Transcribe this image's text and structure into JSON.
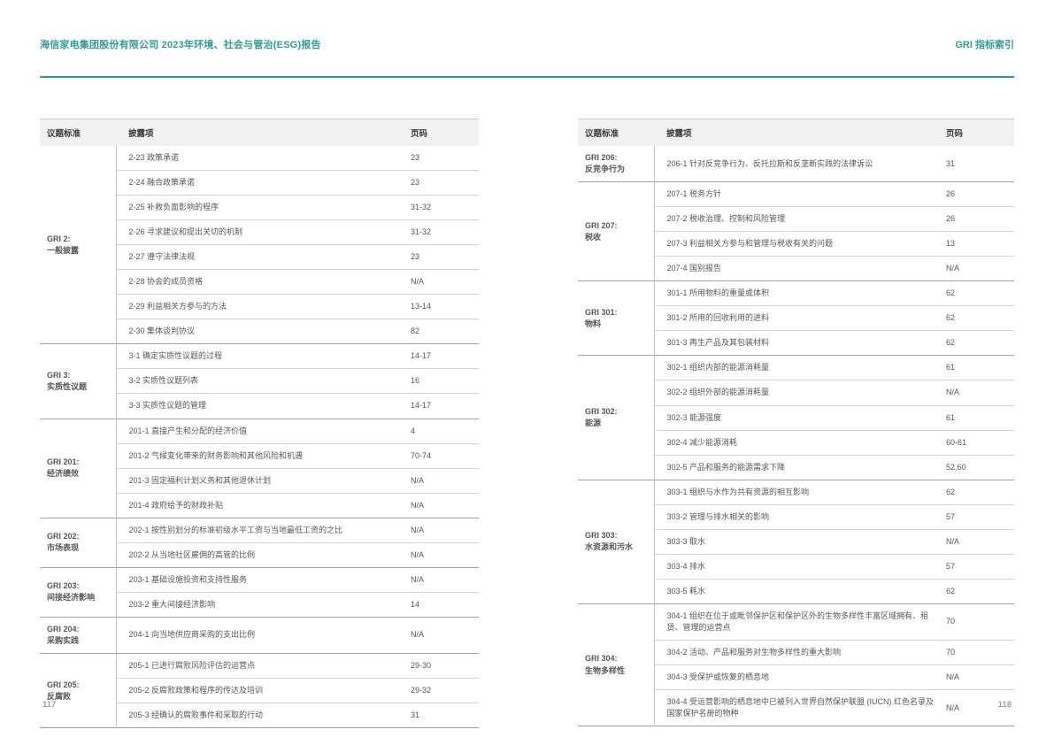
{
  "header": {
    "left_title": "海信家电集团股份有限公司 2023年环境、社会与管治(ESG)报告",
    "right_title": "GRI 指标索引"
  },
  "table_headers": {
    "topic": "议题标准",
    "disclosure": "披露项",
    "page": "页码"
  },
  "footer": {
    "left_page": "117",
    "right_page": "118"
  },
  "colors": {
    "accent_teal": "#2e9d95",
    "table_header_bg": "#f1f1f1",
    "body_text_gray": "#595757"
  },
  "tables": {
    "left": {
      "groups": [
        {
          "topic_lines": [
            "GRI 2:",
            "一般披露"
          ],
          "rows": [
            {
              "disclosure": "2-23 政策承诺",
              "page": "23"
            },
            {
              "disclosure": "2-24 融合政策承诺",
              "page": "23"
            },
            {
              "disclosure": "2-25 补救负面影响的程序",
              "page": "31-32"
            },
            {
              "disclosure": "2-26 寻求建议和提出关切的机制",
              "page": "31-32"
            },
            {
              "disclosure": "2-27 遵守法律法规",
              "page": "23"
            },
            {
              "disclosure": "2-28 协会的成员资格",
              "page": "N/A"
            },
            {
              "disclosure": "2-29 利益相关方参与的方法",
              "page": "13-14"
            },
            {
              "disclosure": "2-30 集体谈判协议",
              "page": "82"
            }
          ]
        },
        {
          "topic_lines": [
            "GRI 3:",
            "实质性议题"
          ],
          "rows": [
            {
              "disclosure": "3-1 确定实质性议题的过程",
              "page": "14-17"
            },
            {
              "disclosure": "3-2 实质性议题列表",
              "page": "16"
            },
            {
              "disclosure": "3-3 实质性议题的管理",
              "page": "14-17"
            }
          ]
        },
        {
          "topic_lines": [
            "GRI 201:",
            "经济绩效"
          ],
          "rows": [
            {
              "disclosure": "201-1 直接产生和分配的经济价值",
              "page": "4"
            },
            {
              "disclosure": "201-2 气候变化带来的财务影响和其他风险和机遇",
              "page": "70-74"
            },
            {
              "disclosure": "201-3 固定福利计划义务和其他退休计划",
              "page": "N/A"
            },
            {
              "disclosure": "201-4 政府给予的财政补贴",
              "page": "N/A"
            }
          ]
        },
        {
          "topic_lines": [
            "GRI 202:",
            "市场表现"
          ],
          "rows": [
            {
              "disclosure": "202-1 按性别划分的标准初级水平工资与当地最低工资的之比",
              "page": "N/A"
            },
            {
              "disclosure": "202-2 从当地社区雇佣的高管的比例",
              "page": "N/A"
            }
          ]
        },
        {
          "topic_lines": [
            "GRI 203:",
            "间接经济影响"
          ],
          "rows": [
            {
              "disclosure": "203-1 基础设施投资和支持性服务",
              "page": "N/A"
            },
            {
              "disclosure": "203-2 重大间接经济影响",
              "page": "14"
            }
          ]
        },
        {
          "topic_lines": [
            "GRI 204:",
            "采购实践"
          ],
          "rows": [
            {
              "disclosure": "204-1 向当地供应商采购的支出比例",
              "page": "N/A"
            }
          ]
        },
        {
          "topic_lines": [
            "GRI 205:",
            "反腐败"
          ],
          "rows": [
            {
              "disclosure": "205-1 已进行腐败风险评估的运营点",
              "page": "29-30"
            },
            {
              "disclosure": "205-2 反腐败政策和程序的传达及培训",
              "page": "29-32"
            },
            {
              "disclosure": "205-3 经确认的腐败事件和采取的行动",
              "page": "31"
            }
          ]
        }
      ]
    },
    "right": {
      "groups": [
        {
          "topic_lines": [
            "GRI 206:",
            "反竞争行为"
          ],
          "rows": [
            {
              "disclosure": "206-1 针对反竞争行为、反托拉斯和反垄断实践的法律诉讼",
              "page": "31"
            }
          ]
        },
        {
          "topic_lines": [
            "GRI 207:",
            "税收"
          ],
          "rows": [
            {
              "disclosure": "207-1 税务方针",
              "page": "26"
            },
            {
              "disclosure": "207-2 税收治理、控制和风险管理",
              "page": "26"
            },
            {
              "disclosure": "207-3 利益相关方参与和管理与税收有关的问题",
              "page": "13"
            },
            {
              "disclosure": "207-4 国别报告",
              "page": "N/A"
            }
          ]
        },
        {
          "topic_lines": [
            "GRI 301:",
            "物料"
          ],
          "rows": [
            {
              "disclosure": "301-1 所用物料的重量或体积",
              "page": "62"
            },
            {
              "disclosure": "301-2 所用的回收利用的进料",
              "page": "62"
            },
            {
              "disclosure": "301-3 再生产品及其包装材料",
              "page": "62"
            }
          ]
        },
        {
          "topic_lines": [
            "GRI 302:",
            "能源"
          ],
          "rows": [
            {
              "disclosure": "302-1 组织内部的能源消耗量",
              "page": "61"
            },
            {
              "disclosure": "302-2 组织外部的能源消耗量",
              "page": "N/A"
            },
            {
              "disclosure": "302-3 能源强度",
              "page": "61"
            },
            {
              "disclosure": "302-4 减少能源消耗",
              "page": "60-61"
            },
            {
              "disclosure": "302-5 产品和服务的能源需求下降",
              "page": "52,60"
            }
          ]
        },
        {
          "topic_lines": [
            "GRI 303:",
            "水资源和污水"
          ],
          "rows": [
            {
              "disclosure": "303-1 组织与水作为共有资源的相互影响",
              "page": "62"
            },
            {
              "disclosure": "303-2 管理与排水相关的影响",
              "page": "57"
            },
            {
              "disclosure": "303-3 取水",
              "page": "N/A"
            },
            {
              "disclosure": "303-4 排水",
              "page": "57"
            },
            {
              "disclosure": "303-5 耗水",
              "page": "62"
            }
          ]
        },
        {
          "topic_lines": [
            "GRI 304:",
            "生物多样性"
          ],
          "rows": [
            {
              "disclosure": "304-1 组织在位于或毗邻保护区和保护区外的生物多样性丰富区域拥有、租赁、管理的运营点",
              "page": "70"
            },
            {
              "disclosure": "304-2 活动、产品和服务对生物多样性的重大影响",
              "page": "70"
            },
            {
              "disclosure": "304-3 受保护或恢复的栖息地",
              "page": "N/A"
            },
            {
              "disclosure": "304-4 受运营影响的栖息地中已被列入世界自然保护联盟 (IUCN) 红色名录及国家保护名册的物种",
              "page": "N/A"
            }
          ]
        }
      ]
    }
  }
}
